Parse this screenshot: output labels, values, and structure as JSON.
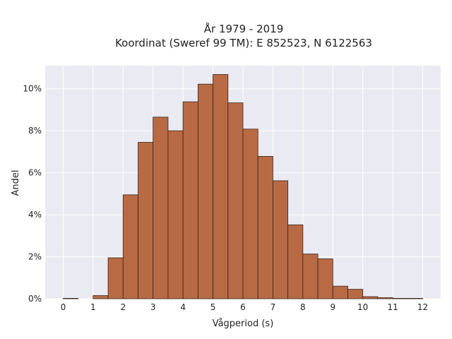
{
  "chart_data": {
    "type": "bar",
    "title_line1": "År 1979 - 2019",
    "title_line2": "Koordinat (Sweref 99 TM): E 852523, N 6122563",
    "xlabel": "Vågperiod (s)",
    "ylabel": "Andel",
    "xlim": [
      -0.6,
      12.6
    ],
    "ylim": [
      0,
      11.1
    ],
    "x_ticks": [
      0,
      1,
      2,
      3,
      4,
      5,
      6,
      7,
      8,
      9,
      10,
      11,
      12
    ],
    "x_tick_labels": [
      "0",
      "1",
      "2",
      "3",
      "4",
      "5",
      "6",
      "7",
      "8",
      "9",
      "10",
      "11",
      "12"
    ],
    "y_ticks": [
      0,
      2,
      4,
      6,
      8,
      10
    ],
    "y_tick_labels": [
      "0%",
      "2%",
      "4%",
      "6%",
      "8%",
      "10%"
    ],
    "grid": true,
    "bar_color": "#b86a45",
    "plot_background": "#eaeaf2",
    "bins": [
      {
        "x0": 0.0,
        "x1": 0.5,
        "value": 0.02
      },
      {
        "x0": 1.0,
        "x1": 1.5,
        "value": 0.15
      },
      {
        "x0": 1.5,
        "x1": 2.0,
        "value": 1.95
      },
      {
        "x0": 2.0,
        "x1": 2.5,
        "value": 4.95
      },
      {
        "x0": 2.5,
        "x1": 3.0,
        "value": 7.45
      },
      {
        "x0": 3.0,
        "x1": 3.5,
        "value": 8.65
      },
      {
        "x0": 3.5,
        "x1": 4.0,
        "value": 8.0
      },
      {
        "x0": 4.0,
        "x1": 4.5,
        "value": 9.38
      },
      {
        "x0": 4.5,
        "x1": 5.0,
        "value": 10.22
      },
      {
        "x0": 5.0,
        "x1": 5.5,
        "value": 10.68
      },
      {
        "x0": 5.5,
        "x1": 6.0,
        "value": 9.33
      },
      {
        "x0": 6.0,
        "x1": 6.5,
        "value": 8.08
      },
      {
        "x0": 6.5,
        "x1": 7.0,
        "value": 6.78
      },
      {
        "x0": 7.0,
        "x1": 7.5,
        "value": 5.62
      },
      {
        "x0": 7.5,
        "x1": 8.0,
        "value": 3.52
      },
      {
        "x0": 8.0,
        "x1": 8.5,
        "value": 2.13
      },
      {
        "x0": 8.5,
        "x1": 9.0,
        "value": 1.9
      },
      {
        "x0": 9.0,
        "x1": 9.5,
        "value": 0.6
      },
      {
        "x0": 9.5,
        "x1": 10.0,
        "value": 0.45
      },
      {
        "x0": 10.0,
        "x1": 10.5,
        "value": 0.1
      },
      {
        "x0": 10.5,
        "x1": 11.0,
        "value": 0.05
      },
      {
        "x0": 11.0,
        "x1": 11.5,
        "value": 0.02
      },
      {
        "x0": 11.5,
        "x1": 12.0,
        "value": 0.02
      }
    ]
  }
}
